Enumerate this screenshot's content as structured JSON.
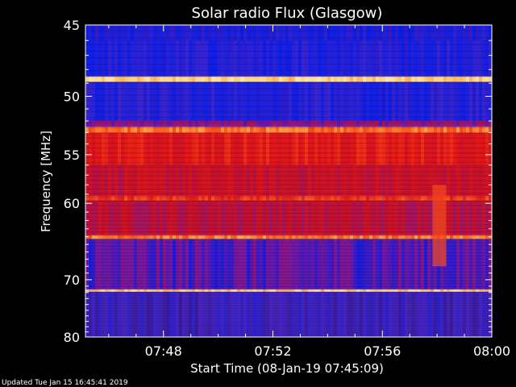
{
  "chart_data": {
    "type": "heatmap",
    "title": "Solar radio Flux (Glasgow)",
    "xlabel": "Start Time (08-Jan-19 07:45:09)",
    "ylabel": "Frequency [MHz]",
    "x_unit": "minutes after 07:45:09",
    "xlim": [
      "07:45:09",
      "08:00:00"
    ],
    "ylim": [
      45,
      80
    ],
    "y_scale": "reciprocal",
    "x_ticks": [
      "07:48",
      "07:52",
      "07:56",
      "08:00"
    ],
    "y_ticks": [
      45,
      50,
      55,
      60,
      70,
      80
    ],
    "colormap": [
      "#14003a",
      "#2a1480",
      "#4a26c4",
      "#0a1ee6",
      "#8a1890",
      "#c21030",
      "#e01818",
      "#ff5a1e",
      "#ffc860",
      "#fff2c8"
    ],
    "bands": [
      {
        "from": 45.0,
        "to": 46.0,
        "level": 0.32
      },
      {
        "from": 46.0,
        "to": 48.5,
        "level": 0.3
      },
      {
        "from": 48.5,
        "to": 48.9,
        "level": 0.92
      },
      {
        "from": 48.9,
        "to": 52.0,
        "level": 0.3
      },
      {
        "from": 52.0,
        "to": 52.5,
        "level": 0.45
      },
      {
        "from": 52.5,
        "to": 53.0,
        "level": 0.8
      },
      {
        "from": 53.0,
        "to": 56.0,
        "level": 0.66
      },
      {
        "from": 56.0,
        "to": 59.2,
        "level": 0.58
      },
      {
        "from": 59.2,
        "to": 59.7,
        "level": 0.72
      },
      {
        "from": 59.7,
        "to": 63.8,
        "level": 0.55
      },
      {
        "from": 63.8,
        "to": 64.3,
        "level": 0.8
      },
      {
        "from": 64.3,
        "to": 71.5,
        "level": 0.4
      },
      {
        "from": 71.5,
        "to": 71.9,
        "level": 0.9
      },
      {
        "from": 71.9,
        "to": 80.0,
        "level": 0.22
      }
    ],
    "burst": {
      "start": "07:57:50",
      "end": "07:58:20",
      "freq_from": 58,
      "freq_to": 68,
      "level": 0.75
    }
  },
  "footer": "Updated Tue Jan 15 16:45:41 2019"
}
